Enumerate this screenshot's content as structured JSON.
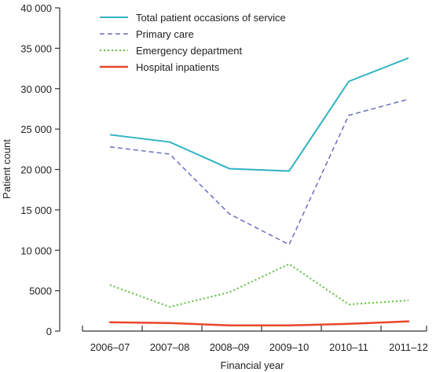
{
  "chart_data": {
    "type": "line",
    "xlabel": "Financial year",
    "ylabel": "Patient count",
    "categories": [
      "2006–07",
      "2007–08",
      "2008–09",
      "2009–10",
      "2010–11",
      "2011–12"
    ],
    "ylim": [
      0,
      40000
    ],
    "yticks": [
      0,
      5000,
      10000,
      15000,
      20000,
      25000,
      30000,
      35000,
      40000
    ],
    "ytick_labels": [
      "0",
      "5000",
      "10 000",
      "15 000",
      "20 000",
      "25 000",
      "30 000",
      "35 000",
      "40 000"
    ],
    "grid": false,
    "legend_position": "top-left",
    "series": [
      {
        "name": "Total patient occasions of service",
        "values": [
          24300,
          23400,
          20100,
          19800,
          30900,
          33800
        ],
        "color": "#2fb3c3",
        "style": "solid"
      },
      {
        "name": "Primary care",
        "values": [
          22800,
          21900,
          14500,
          10700,
          26700,
          28700
        ],
        "color": "#6b6fbf",
        "style": "dashed"
      },
      {
        "name": "Emergency department",
        "values": [
          5700,
          3000,
          4800,
          8300,
          3300,
          3800
        ],
        "color": "#5cbf3c",
        "style": "dotted"
      },
      {
        "name": "Hospital inpatients",
        "values": [
          1100,
          1000,
          700,
          700,
          900,
          1200
        ],
        "color": "#e8472a",
        "style": "solid-thick"
      }
    ]
  }
}
